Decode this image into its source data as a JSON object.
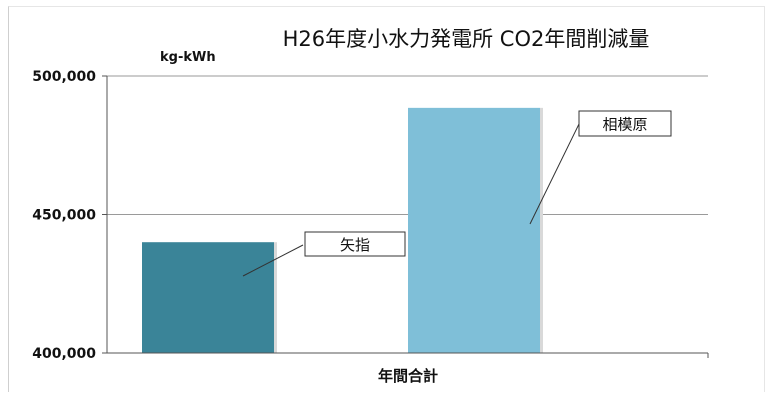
{
  "chart_data": {
    "type": "bar",
    "title": "H26年度小水力発電所 CO2年間削減量",
    "ylabel": "kg-kWh",
    "xlabel": "",
    "categories": [
      "年間合計"
    ],
    "ylim": [
      400000,
      500000
    ],
    "yticks": [
      400000,
      450000,
      500000
    ],
    "ytick_labels": [
      "400,000",
      "450,000",
      "500,000"
    ],
    "grid": true,
    "series": [
      {
        "name": "矢指",
        "values": [
          440000
        ],
        "color": "#3a8498"
      },
      {
        "name": "相模原",
        "values": [
          488500
        ],
        "color": "#7fbfd8"
      }
    ]
  }
}
